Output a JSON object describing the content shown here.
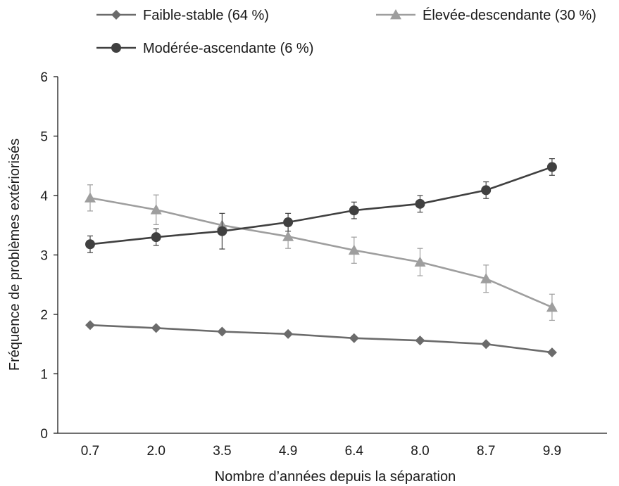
{
  "chart_data": {
    "type": "line",
    "title": "",
    "xlabel": "Nombre d’années depuis la séparation",
    "ylabel": "Fréquence de problèmes extériorisés",
    "categories": [
      "0.7",
      "2.0",
      "3.5",
      "4.9",
      "6.4",
      "8.0",
      "8.7",
      "9.9"
    ],
    "ylim": [
      0,
      6
    ],
    "yticks": [
      "0",
      "1",
      "2",
      "3",
      "4",
      "5",
      "6"
    ],
    "grid": false,
    "legend_position": "top",
    "series": [
      {
        "name": "Faible-stable (64 %)",
        "marker": "diamond",
        "color": "#6b6b6b",
        "values": [
          1.82,
          1.77,
          1.71,
          1.67,
          1.6,
          1.56,
          1.5,
          1.36
        ],
        "errors": []
      },
      {
        "name": "Élevée-descendante (30 %)",
        "marker": "triangle",
        "color": "#9e9e9e",
        "values": [
          3.96,
          3.76,
          3.5,
          3.31,
          3.08,
          2.88,
          2.6,
          2.12
        ],
        "errors": [
          0.22,
          0.25,
          0.0,
          0.2,
          0.22,
          0.23,
          0.23,
          0.22
        ]
      },
      {
        "name": "Modérée-ascendante (6 %)",
        "marker": "circle",
        "color": "#404040",
        "values": [
          3.18,
          3.3,
          3.4,
          3.55,
          3.75,
          3.86,
          4.09,
          4.48
        ],
        "errors": [
          0.14,
          0.14,
          0.3,
          0.15,
          0.14,
          0.14,
          0.14,
          0.14
        ]
      }
    ]
  }
}
